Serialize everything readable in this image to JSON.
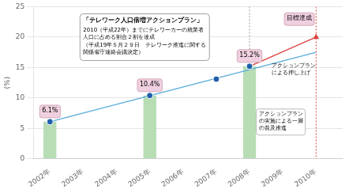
{
  "chart_data": {
    "type": "bar",
    "ylabel": "(%)",
    "xlim": [
      2001.5,
      2010.8
    ],
    "xticks": [
      {
        "value": 2002,
        "label": "2002年"
      },
      {
        "value": 2003,
        "label": "2003年"
      },
      {
        "value": 2004,
        "label": "2004年"
      },
      {
        "value": 2005,
        "label": "2005年"
      },
      {
        "value": 2006,
        "label": "2006年"
      },
      {
        "value": 2007,
        "label": "2007年"
      },
      {
        "value": 2008,
        "label": "2008年"
      },
      {
        "value": 2009,
        "label": "2009年"
      },
      {
        "value": 2010,
        "label": "2010年"
      }
    ],
    "ylim": [
      0,
      25
    ],
    "yticks": [
      0,
      5,
      10,
      15,
      20,
      25
    ],
    "grid": true,
    "series": [
      {
        "type": "bar",
        "color": "#b8ddb5",
        "x": [
          2002,
          2005,
          2008
        ],
        "values": [
          6.1,
          10.4,
          15.2
        ],
        "data_labels": true,
        "value_labels": [
          "6.1%",
          "10.4%",
          "15.2%"
        ]
      },
      {
        "type": "line",
        "color": "#5aacdc",
        "x": [
          2002,
          2010
        ],
        "values": [
          6.1,
          17.5
        ]
      },
      {
        "type": "line",
        "color": "#dd4444",
        "x": [
          2008,
          2010
        ],
        "values": [
          15.2,
          20.0
        ],
        "marker": "triangle"
      },
      {
        "type": "scatter",
        "color": "#2060aa",
        "x": [
          2002,
          2005,
          2007,
          2008
        ],
        "values": [
          6.1,
          10.4,
          13.1,
          15.2
        ],
        "marker": "circle"
      }
    ],
    "vertical_lines": [
      {
        "x": 2008,
        "color": "#999999",
        "line_style": "dotted"
      },
      {
        "x": 2010,
        "color": "#dd4444",
        "line_style": "dotted"
      }
    ],
    "annotations": [
      {
        "text": "目標達成"
      },
      {
        "text": "アクションプラン\nによる押し上げ"
      },
      {
        "text": "アクションプラン\nの実施による一層\nの普及推進"
      }
    ],
    "callout": {
      "title": "「テレワーク人口倍増アクションプラン」",
      "lines": [
        "2010（平成22年）までにテレワーカーの就業者",
        "人口に占める割合２割を達成",
        "（平成19年５月２９日　テレワーク推進に関する",
        "関係省庁連絡会議決定）"
      ]
    }
  }
}
